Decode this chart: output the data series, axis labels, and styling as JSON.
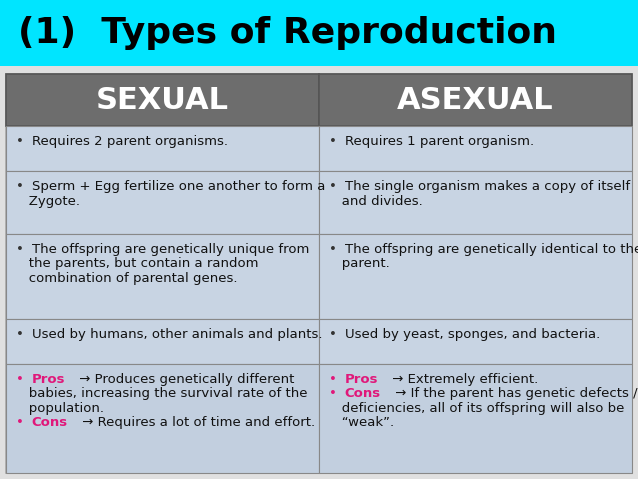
{
  "title": "(1)  Types of Reproduction",
  "title_bg": "#00e5ff",
  "title_color": "#000000",
  "title_fontsize": 26,
  "header_bg": "#6d6d6d",
  "header_text_color": "#ffffff",
  "cell_bg": "#c8d4e3",
  "cell_bg_last": "#c2cfdf",
  "grid_color": "#888888",
  "outer_bg": "#e8eaf0",
  "col1_header": "SEXUAL",
  "col2_header": "ASEXUAL",
  "col1_rows": [
    [
      [
        "• ",
        "#333333",
        false
      ],
      [
        "Requires 2 parent organisms.",
        "#111111",
        false
      ]
    ],
    [
      [
        "• ",
        "#333333",
        false
      ],
      [
        "Sperm + Egg fertilize one another to form a\n   Zygote.",
        "#111111",
        false
      ]
    ],
    [
      [
        "• ",
        "#333333",
        false
      ],
      [
        "The offspring are genetically unique from\n   the parents, but contain a random\n   combination of parental genes.",
        "#111111",
        false
      ]
    ],
    [
      [
        "• ",
        "#333333",
        false
      ],
      [
        "Used by humans, other animals and plants.",
        "#111111",
        false
      ]
    ],
    [
      [
        "• ",
        "#e0187a",
        false
      ],
      [
        "Pros",
        "#e0187a",
        true
      ],
      [
        " → Produces genetically different\n   babies, increasing the survival rate of the\n   population.",
        "#111111",
        false
      ],
      "\n",
      [
        "• ",
        "#e0187a",
        false
      ],
      [
        "Cons",
        "#e0187a",
        true
      ],
      [
        " → Requires a lot of time and effort.",
        "#111111",
        false
      ]
    ]
  ],
  "col2_rows": [
    [
      [
        "• ",
        "#333333",
        false
      ],
      [
        "Requires 1 parent organism.",
        "#111111",
        false
      ]
    ],
    [
      [
        "• ",
        "#333333",
        false
      ],
      [
        "The single organism makes a copy of itself\n   and divides.",
        "#111111",
        false
      ]
    ],
    [
      [
        "• ",
        "#333333",
        false
      ],
      [
        "The offspring are genetically identical to the\n   parent.",
        "#111111",
        false
      ]
    ],
    [
      [
        "• ",
        "#333333",
        false
      ],
      [
        "Used by yeast, sponges, and bacteria.",
        "#111111",
        false
      ]
    ],
    [
      [
        "• ",
        "#e0187a",
        false
      ],
      [
        "Pros",
        "#e0187a",
        true
      ],
      [
        " → Extremely efficient.",
        "#111111",
        false
      ],
      "\n",
      [
        "• ",
        "#e0187a",
        false
      ],
      [
        "Cons",
        "#e0187a",
        true
      ],
      [
        " → If the parent has genetic defects /\n   deficiencies, all of its offspring will also be\n   “weak”.",
        "#111111",
        false
      ]
    ]
  ],
  "body_fontsize": 9.5,
  "header_fontsize": 22,
  "fig_width": 6.38,
  "fig_height": 4.79,
  "dpi": 100
}
